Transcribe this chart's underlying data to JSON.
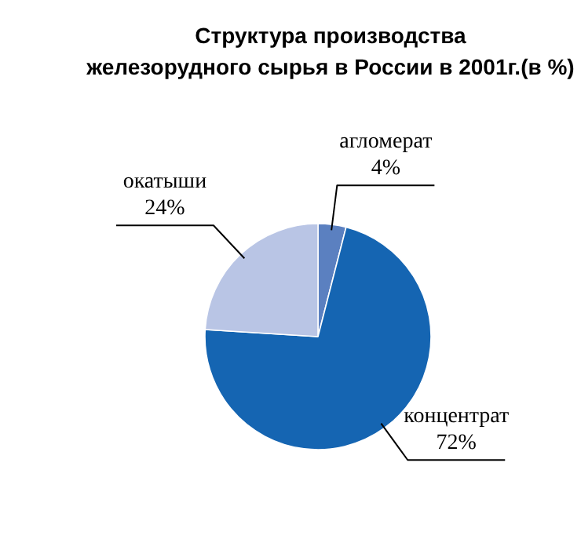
{
  "chart_data": {
    "type": "pie",
    "title": "Структура производства\nжелезорудного сырья в России в 2001г.(в %)",
    "categories": [
      "агломерат",
      "концентрат",
      "окатыши"
    ],
    "values": [
      4,
      72,
      24
    ],
    "value_labels": [
      "4%",
      "72%",
      "24%"
    ],
    "colors": [
      "#5b80c0",
      "#1565b2",
      "#b9c5e5"
    ]
  }
}
